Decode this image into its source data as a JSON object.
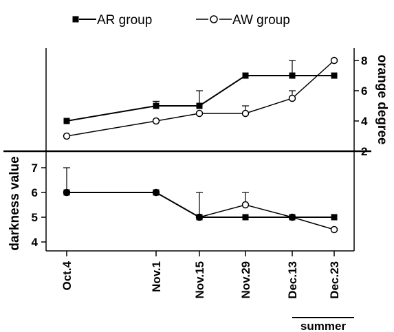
{
  "chart_data": [
    {
      "type": "line",
      "panel": "top",
      "categories": [
        "Oct.4",
        "Nov.1",
        "Nov.15",
        "Nov.29",
        "Dec.13",
        "Dec.23"
      ],
      "ylabel": "orange degree",
      "yaxis_side": "right",
      "yticks": [
        "2",
        "4",
        "6",
        "8"
      ],
      "ylim": [
        2,
        8.5
      ],
      "series": [
        {
          "name": "AR group",
          "marker": "filled-square",
          "values": [
            4,
            5,
            5,
            7,
            7,
            7
          ],
          "error_plus": [
            0,
            0.3,
            1,
            0,
            1,
            0
          ]
        },
        {
          "name": "AW group",
          "marker": "open-circle",
          "values": [
            3,
            4,
            4.5,
            4.5,
            5.5,
            8
          ],
          "error_plus": [
            0,
            0,
            0,
            0.5,
            0.5,
            0
          ]
        }
      ]
    },
    {
      "type": "line",
      "panel": "bottom",
      "categories": [
        "Oct.4",
        "Nov.1",
        "Nov.15",
        "Nov.29",
        "Dec.13",
        "Dec.23"
      ],
      "ylabel": "darkness value",
      "yaxis_side": "left",
      "yticks": [
        "4",
        "5",
        "6",
        "7"
      ],
      "ylim": [
        3.6,
        7.7
      ],
      "series": [
        {
          "name": "AR group",
          "marker": "filled-square",
          "values": [
            6,
            6,
            5,
            5,
            5,
            5
          ],
          "error_plus": [
            1,
            0,
            1,
            0,
            0,
            0
          ]
        },
        {
          "name": "AW group",
          "marker": "open-circle",
          "values": [
            6,
            6,
            5,
            5.5,
            5,
            4.5
          ],
          "error_plus": [
            0,
            0,
            0,
            0.5,
            0,
            0
          ]
        }
      ]
    }
  ],
  "legend": [
    {
      "label": "AR group",
      "marker": "filled-square"
    },
    {
      "label": "AW group",
      "marker": "open-circle"
    }
  ],
  "xtick_labels": [
    "Oct.4",
    "Nov.1",
    "Nov.15",
    "Nov.29",
    "Dec.13",
    "Dec.23"
  ],
  "annotation": {
    "label": "summer",
    "spans": [
      "Dec.13",
      "Dec.23"
    ]
  },
  "colors": {
    "ink": "#000000",
    "background": "#ffffff"
  }
}
